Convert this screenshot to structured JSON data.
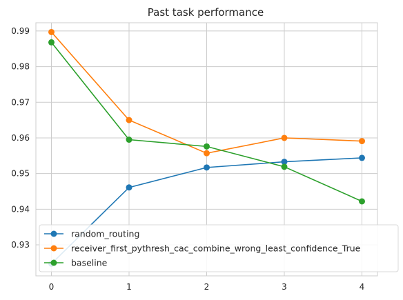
{
  "chart_data": {
    "type": "line",
    "title": "Past task performance",
    "xlabel": "",
    "ylabel": "",
    "x": [
      0,
      1,
      2,
      3,
      4
    ],
    "xlim": [
      -0.2,
      4.2
    ],
    "ylim": [
      0.9213,
      0.9923
    ],
    "xticks": [
      "0",
      "1",
      "2",
      "3",
      "4"
    ],
    "yticks": [
      0.93,
      0.94,
      0.95,
      0.96,
      0.97,
      0.98,
      0.99
    ],
    "ytick_labels": [
      "0.93",
      "0.94",
      "0.95",
      "0.96",
      "0.97",
      "0.98",
      "0.99"
    ],
    "grid": true,
    "legend_position": "lower-left",
    "series": [
      {
        "name": "random_routing",
        "color": "#1f77b4",
        "values": [
          0.9247,
          0.9461,
          0.9517,
          0.9533,
          0.9544
        ]
      },
      {
        "name": "receiver_first_pythresh_cac_combine_wrong_least_confidence_True",
        "color": "#ff7f0e",
        "values": [
          0.9897,
          0.965,
          0.9557,
          0.96,
          0.9591
        ]
      },
      {
        "name": "baseline",
        "color": "#2ca02c",
        "values": [
          0.9868,
          0.9595,
          0.9576,
          0.9519,
          0.9422
        ]
      }
    ]
  }
}
